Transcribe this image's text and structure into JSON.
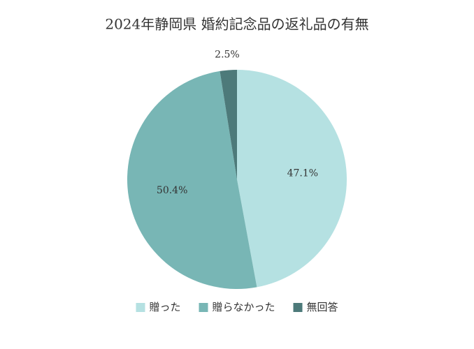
{
  "chart_data": {
    "type": "pie",
    "title": "2024年静岡県 婚約記念品の返礼品の有無",
    "categories": [
      "贈った",
      "贈らなかった",
      "無回答"
    ],
    "values": [
      47.1,
      50.4,
      2.5
    ],
    "value_labels": [
      "47.1%",
      "50.4%",
      "2.5%"
    ],
    "colors": [
      "#b5e1e2",
      "#78b6b5",
      "#4d7a7a"
    ]
  }
}
